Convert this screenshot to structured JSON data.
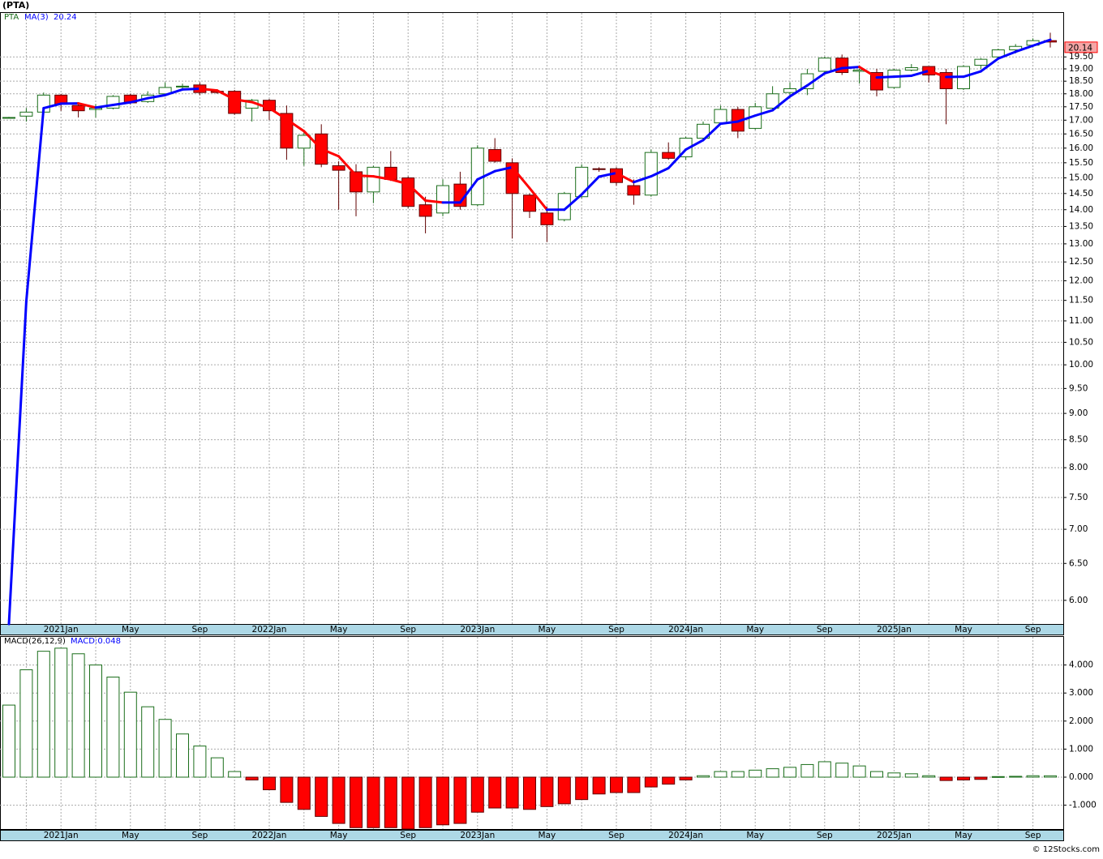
{
  "chart_data": [
    {
      "type": "candlestick",
      "title": "(PTA)",
      "log_scale": true,
      "grid": true,
      "categories": [
        null,
        null,
        null,
        "2021Jan",
        null,
        null,
        null,
        "May",
        null,
        null,
        null,
        "Sep",
        null,
        null,
        null,
        "2022Jan",
        null,
        null,
        null,
        "May",
        null,
        null,
        null,
        "Sep",
        null,
        null,
        null,
        "2023Jan",
        null,
        null,
        null,
        "May",
        null,
        null,
        null,
        "Sep",
        null,
        null,
        null,
        "2024Jan",
        null,
        null,
        null,
        "May",
        null,
        null,
        null,
        "Sep",
        null,
        null,
        null,
        "2025Jan",
        null,
        null,
        null,
        "May",
        null,
        null,
        null,
        "Sep",
        null
      ],
      "ylim": [
        5.7,
        21.45
      ],
      "yticks": [
        {
          "value": 6,
          "label": "6.00"
        },
        {
          "value": 6.5,
          "label": "6.50"
        },
        {
          "value": 7,
          "label": "7.00"
        },
        {
          "value": 7.5,
          "label": "7.50"
        },
        {
          "value": 8,
          "label": "8.00"
        },
        {
          "value": 8.5,
          "label": "8.50"
        },
        {
          "value": 9,
          "label": "9.00"
        },
        {
          "value": 9.5,
          "label": "9.50"
        },
        {
          "value": 10,
          "label": "10.00"
        },
        {
          "value": 10.5,
          "label": "10.50"
        },
        {
          "value": 11,
          "label": "11.00"
        },
        {
          "value": 11.5,
          "label": "11.50"
        },
        {
          "value": 12,
          "label": "12.00"
        },
        {
          "value": 12.5,
          "label": "12.50"
        },
        {
          "value": 13,
          "label": "13.00"
        },
        {
          "value": 13.5,
          "label": "13.50"
        },
        {
          "value": 14,
          "label": "14.00"
        },
        {
          "value": 14.5,
          "label": "14.50"
        },
        {
          "value": 15,
          "label": "15.00"
        },
        {
          "value": 15.5,
          "label": "15.50"
        },
        {
          "value": 16,
          "label": "16.00"
        },
        {
          "value": 16.5,
          "label": "16.50"
        },
        {
          "value": 17,
          "label": "17.00"
        },
        {
          "value": 17.5,
          "label": "17.50"
        },
        {
          "value": 18,
          "label": "18.00"
        },
        {
          "value": 18.5,
          "label": "18.50"
        },
        {
          "value": 19,
          "label": "19.00"
        },
        {
          "value": 19.5,
          "label": "19.50"
        }
      ],
      "series": [
        {
          "name": "PTA",
          "up_color": "#ffffff",
          "down_color": "#ff0000",
          "up_edge": "#1b6e1b",
          "down_edge": "#600000",
          "label_color": "#f4a6a6",
          "open": [
            17.1,
            17.15,
            17.3,
            17.95,
            17.55,
            17.4,
            17.45,
            17.95,
            17.7,
            18.0,
            18.3,
            18.35,
            18.1,
            18.1,
            17.45,
            17.75,
            17.25,
            16.0,
            16.5,
            15.4,
            15.2,
            14.55,
            15.35,
            15.0,
            14.15,
            13.9,
            14.8,
            14.15,
            15.95,
            15.5,
            14.45,
            13.9,
            13.7,
            14.4,
            15.3,
            15.3,
            14.75,
            14.45,
            15.85,
            15.7,
            16.35,
            16.9,
            17.4,
            16.7,
            17.45,
            18.05,
            18.2,
            18.9,
            19.45,
            18.9,
            18.85,
            18.25,
            18.95,
            19.1,
            18.85,
            18.2,
            19.15,
            19.5,
            19.8,
            20.0,
            20.2
          ],
          "high": [
            17.12,
            17.45,
            18.05,
            18.0,
            17.6,
            17.6,
            17.95,
            18.0,
            18.1,
            18.45,
            18.4,
            18.45,
            18.15,
            18.15,
            17.8,
            17.8,
            17.55,
            16.6,
            16.85,
            15.55,
            15.45,
            15.4,
            15.9,
            15.05,
            14.4,
            14.95,
            15.2,
            16.1,
            16.35,
            15.65,
            14.5,
            14.1,
            14.55,
            15.45,
            15.35,
            15.35,
            14.95,
            15.95,
            16.2,
            16.4,
            16.95,
            17.55,
            17.5,
            17.65,
            18.3,
            18.45,
            19.0,
            19.5,
            19.6,
            19.0,
            19.0,
            19.0,
            19.2,
            19.1,
            19.0,
            19.15,
            19.45,
            19.85,
            20.05,
            20.3,
            20.55
          ],
          "low": [
            17.08,
            16.95,
            17.2,
            17.35,
            17.1,
            17.1,
            17.4,
            17.6,
            17.65,
            17.95,
            18.2,
            17.95,
            18.0,
            17.2,
            16.95,
            17.0,
            15.6,
            15.4,
            15.35,
            14.0,
            13.8,
            14.2,
            14.9,
            14.05,
            13.3,
            13.8,
            14.0,
            14.1,
            15.5,
            13.15,
            13.75,
            13.05,
            13.65,
            14.35,
            15.2,
            14.75,
            14.15,
            14.4,
            15.6,
            15.6,
            16.3,
            16.85,
            16.35,
            16.65,
            17.4,
            17.85,
            17.95,
            18.85,
            18.75,
            18.4,
            17.9,
            18.2,
            18.9,
            18.45,
            16.85,
            18.15,
            19.0,
            19.45,
            19.65,
            19.9,
            19.9
          ],
          "close": [
            17.1,
            17.3,
            17.95,
            17.6,
            17.35,
            17.45,
            17.9,
            17.65,
            17.95,
            18.25,
            18.3,
            18.05,
            18.05,
            17.25,
            17.75,
            17.35,
            16.0,
            16.45,
            15.45,
            15.25,
            14.55,
            15.35,
            14.95,
            14.1,
            13.8,
            14.75,
            14.1,
            16.0,
            15.55,
            14.5,
            13.95,
            13.55,
            14.5,
            15.35,
            15.28,
            14.85,
            14.45,
            15.85,
            15.65,
            16.35,
            16.85,
            17.4,
            16.6,
            17.5,
            18.0,
            18.2,
            18.8,
            19.45,
            18.85,
            18.95,
            18.15,
            18.95,
            19.05,
            18.75,
            18.2,
            19.1,
            19.4,
            19.8,
            19.95,
            20.2,
            20.14
          ]
        },
        {
          "name": "MA(3)",
          "type": "line",
          "up_color": "#0000ff",
          "down_color": "#ff0000",
          "values": [
            5.7,
            11.47,
            17.45,
            17.62,
            17.63,
            17.47,
            17.57,
            17.67,
            17.83,
            17.95,
            18.17,
            18.2,
            18.13,
            17.78,
            17.68,
            17.45,
            17.03,
            16.6,
            15.97,
            15.72,
            15.08,
            15.05,
            14.95,
            14.8,
            14.28,
            14.22,
            14.22,
            14.95,
            15.22,
            15.35,
            14.67,
            14.0,
            14.0,
            14.47,
            15.04,
            15.16,
            14.86,
            15.05,
            15.32,
            15.95,
            16.28,
            16.87,
            16.95,
            17.17,
            17.37,
            17.9,
            18.33,
            18.82,
            19.03,
            19.08,
            18.65,
            18.68,
            18.72,
            18.92,
            18.67,
            18.68,
            18.9,
            19.43,
            19.72,
            19.98,
            20.24
          ]
        }
      ]
    },
    {
      "type": "bar",
      "title": "MACD(26,12,9)",
      "grid": true,
      "ylim": [
        -1.85,
        5.0
      ],
      "yticks": [
        {
          "value": -1,
          "label": "-1.000"
        },
        {
          "value": 0,
          "label": "0.000"
        },
        {
          "value": 1,
          "label": "1.000"
        },
        {
          "value": 2,
          "label": "2.000"
        },
        {
          "value": 3,
          "label": "3.000"
        },
        {
          "value": 4,
          "label": "4.000"
        }
      ],
      "series": [
        {
          "name": "MACD",
          "up_color": "#ffffff",
          "up_edge": "#1b6e1b",
          "down_color": "#ff0000",
          "down_edge": "#600000",
          "legend_label": "MACD:0.048",
          "values": [
            2.57,
            3.83,
            4.49,
            4.6,
            4.4,
            4.0,
            3.57,
            3.03,
            2.51,
            2.06,
            1.54,
            1.11,
            0.69,
            0.2,
            -0.1,
            -0.45,
            -0.9,
            -1.15,
            -1.4,
            -1.65,
            -1.8,
            -1.8,
            -1.8,
            -1.85,
            -1.8,
            -1.7,
            -1.65,
            -1.25,
            -1.1,
            -1.1,
            -1.15,
            -1.05,
            -0.95,
            -0.8,
            -0.6,
            -0.55,
            -0.55,
            -0.35,
            -0.25,
            -0.1,
            0.05,
            0.2,
            0.2,
            0.25,
            0.3,
            0.35,
            0.45,
            0.55,
            0.5,
            0.4,
            0.2,
            0.15,
            0.12,
            0.05,
            -0.12,
            -0.1,
            -0.08,
            0.02,
            0.03,
            0.05,
            0.048
          ]
        }
      ]
    }
  ],
  "footer": "© 12Stocks.com"
}
